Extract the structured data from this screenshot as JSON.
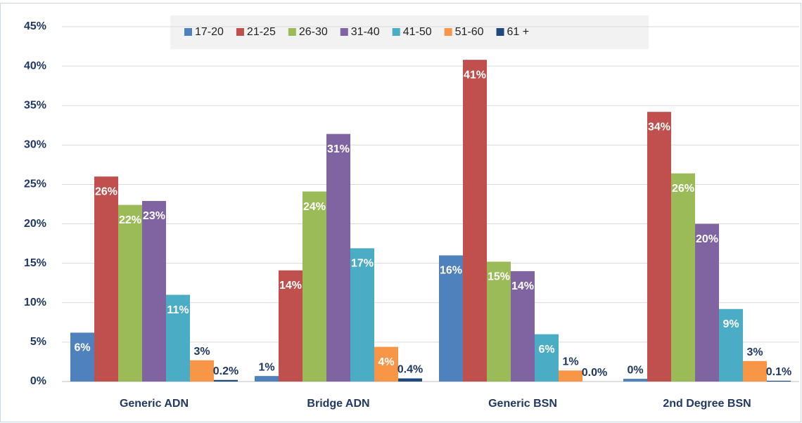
{
  "chart_data": {
    "type": "bar",
    "categories": [
      "Generic ADN",
      "Bridge ADN",
      "Generic BSN",
      "2nd Degree BSN"
    ],
    "series": [
      {
        "name": "17-20",
        "color": "#4f81bd",
        "values": [
          6.2,
          0.7,
          16.0,
          0.35
        ],
        "value_labels": [
          "6%",
          "1%",
          "16%",
          "0%"
        ]
      },
      {
        "name": "21-25",
        "color": "#c0504d",
        "values": [
          26.0,
          14.1,
          40.8,
          34.2
        ],
        "value_labels": [
          "26%",
          "14%",
          "41%",
          "34%"
        ]
      },
      {
        "name": "26-30",
        "color": "#9bbb59",
        "values": [
          22.4,
          24.1,
          15.2,
          26.4
        ],
        "value_labels": [
          "22%",
          "24%",
          "15%",
          "26%"
        ]
      },
      {
        "name": "31-40",
        "color": "#8064a2",
        "values": [
          22.9,
          31.4,
          14.0,
          20.0
        ],
        "value_labels": [
          "23%",
          "31%",
          "14%",
          "20%"
        ]
      },
      {
        "name": "41-50",
        "color": "#4bacc6",
        "values": [
          11.0,
          16.9,
          6.0,
          9.2
        ],
        "value_labels": [
          "11%",
          "17%",
          "6%",
          "9%"
        ]
      },
      {
        "name": "51-60",
        "color": "#f79646",
        "values": [
          2.7,
          4.4,
          1.4,
          2.6
        ],
        "value_labels": [
          "3%",
          "4%",
          "1%",
          "3%"
        ]
      },
      {
        "name": "61 +",
        "color": "#1f497d",
        "values": [
          0.2,
          0.4,
          0.0,
          0.1
        ],
        "value_labels": [
          "0.2%",
          "0.4%",
          "0.0%",
          "0.1%"
        ]
      }
    ],
    "ylim": [
      0,
      45
    ],
    "yticks": [
      {
        "value": 0,
        "label": "0%"
      },
      {
        "value": 5,
        "label": "5%"
      },
      {
        "value": 10,
        "label": "10%"
      },
      {
        "value": 15,
        "label": "15%"
      },
      {
        "value": 20,
        "label": "20%"
      },
      {
        "value": 25,
        "label": "25%"
      },
      {
        "value": 30,
        "label": "30%"
      },
      {
        "value": 35,
        "label": "35%"
      },
      {
        "value": 40,
        "label": "40%"
      },
      {
        "value": 45,
        "label": "45%"
      }
    ],
    "grid": true,
    "legend": "top"
  }
}
